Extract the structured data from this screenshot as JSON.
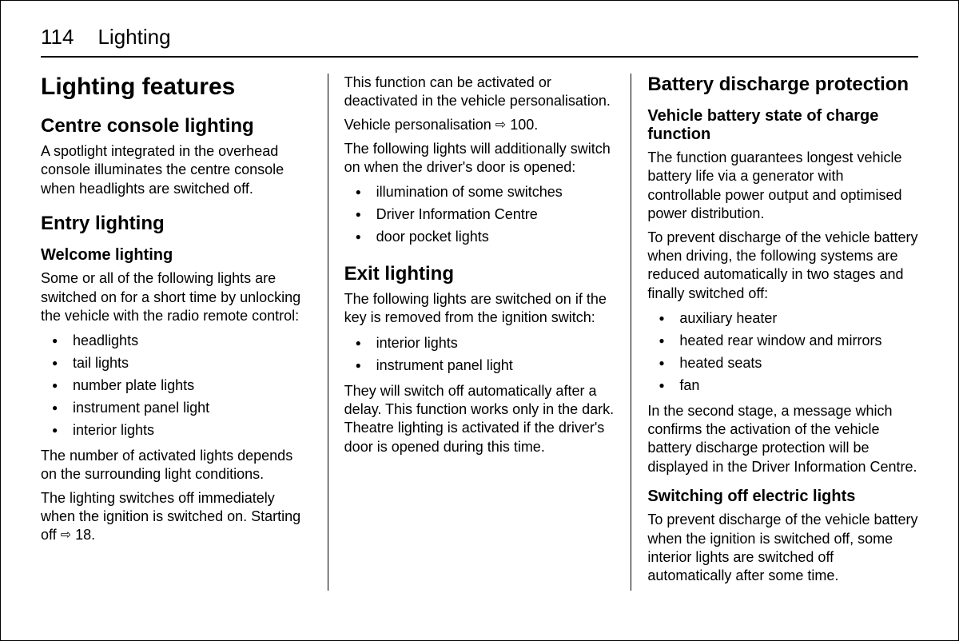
{
  "header": {
    "pageNumber": "114",
    "section": "Lighting"
  },
  "col1": {
    "h1": "Lighting features",
    "h2a": "Centre console lighting",
    "p1": "A spotlight integrated in the overhead console illuminates the centre console when headlights are switched off.",
    "h2b": "Entry lighting",
    "h3a": "Welcome lighting",
    "p2": "Some or all of the following lights are switched on for a short time by unlocking the vehicle with the radio remote control:",
    "list1": [
      "headlights",
      "tail lights",
      "number plate lights",
      "instrument panel light",
      "interior lights"
    ],
    "p3": "The number of activated lights depends on the surrounding light conditions.",
    "p4a": "The lighting switches off immediately when the ignition is switched on. Starting off ",
    "p4ref": "18."
  },
  "col2": {
    "p1": "This function can be activated or deactivated in the vehicle personalisation.",
    "p2a": "Vehicle personalisation ",
    "p2ref": "100.",
    "p3": "The following lights will additionally switch on when the driver's door is opened:",
    "list1": [
      "illumination of some switches",
      "Driver Information Centre",
      "door pocket lights"
    ],
    "h2a": "Exit lighting",
    "p4": "The following lights are switched on if the key is removed from the ignition switch:",
    "list2": [
      "interior lights",
      "instrument panel light"
    ],
    "p5": "They will switch off automatically after a delay. This function works only in the dark. Theatre lighting is activated if the driver's door is opened during this time."
  },
  "col3": {
    "h2a": "Battery discharge protection",
    "h3a": "Vehicle battery state of charge function",
    "p1": "The function guarantees longest vehicle battery life via a generator with controllable power output and optimised power distribution.",
    "p2": "To prevent discharge of the vehicle battery when driving, the following systems are reduced automatically in two stages and finally switched off:",
    "list1": [
      "auxiliary heater",
      "heated rear window and mirrors",
      "heated seats",
      "fan"
    ],
    "p3": "In the second stage, a message which confirms the activation of the vehicle battery discharge protection will be displayed in the Driver Information Centre.",
    "h3b": "Switching off electric lights",
    "p4": "To prevent discharge of the vehicle battery when the ignition is switched off, some interior lights are switched off automatically after some time."
  }
}
